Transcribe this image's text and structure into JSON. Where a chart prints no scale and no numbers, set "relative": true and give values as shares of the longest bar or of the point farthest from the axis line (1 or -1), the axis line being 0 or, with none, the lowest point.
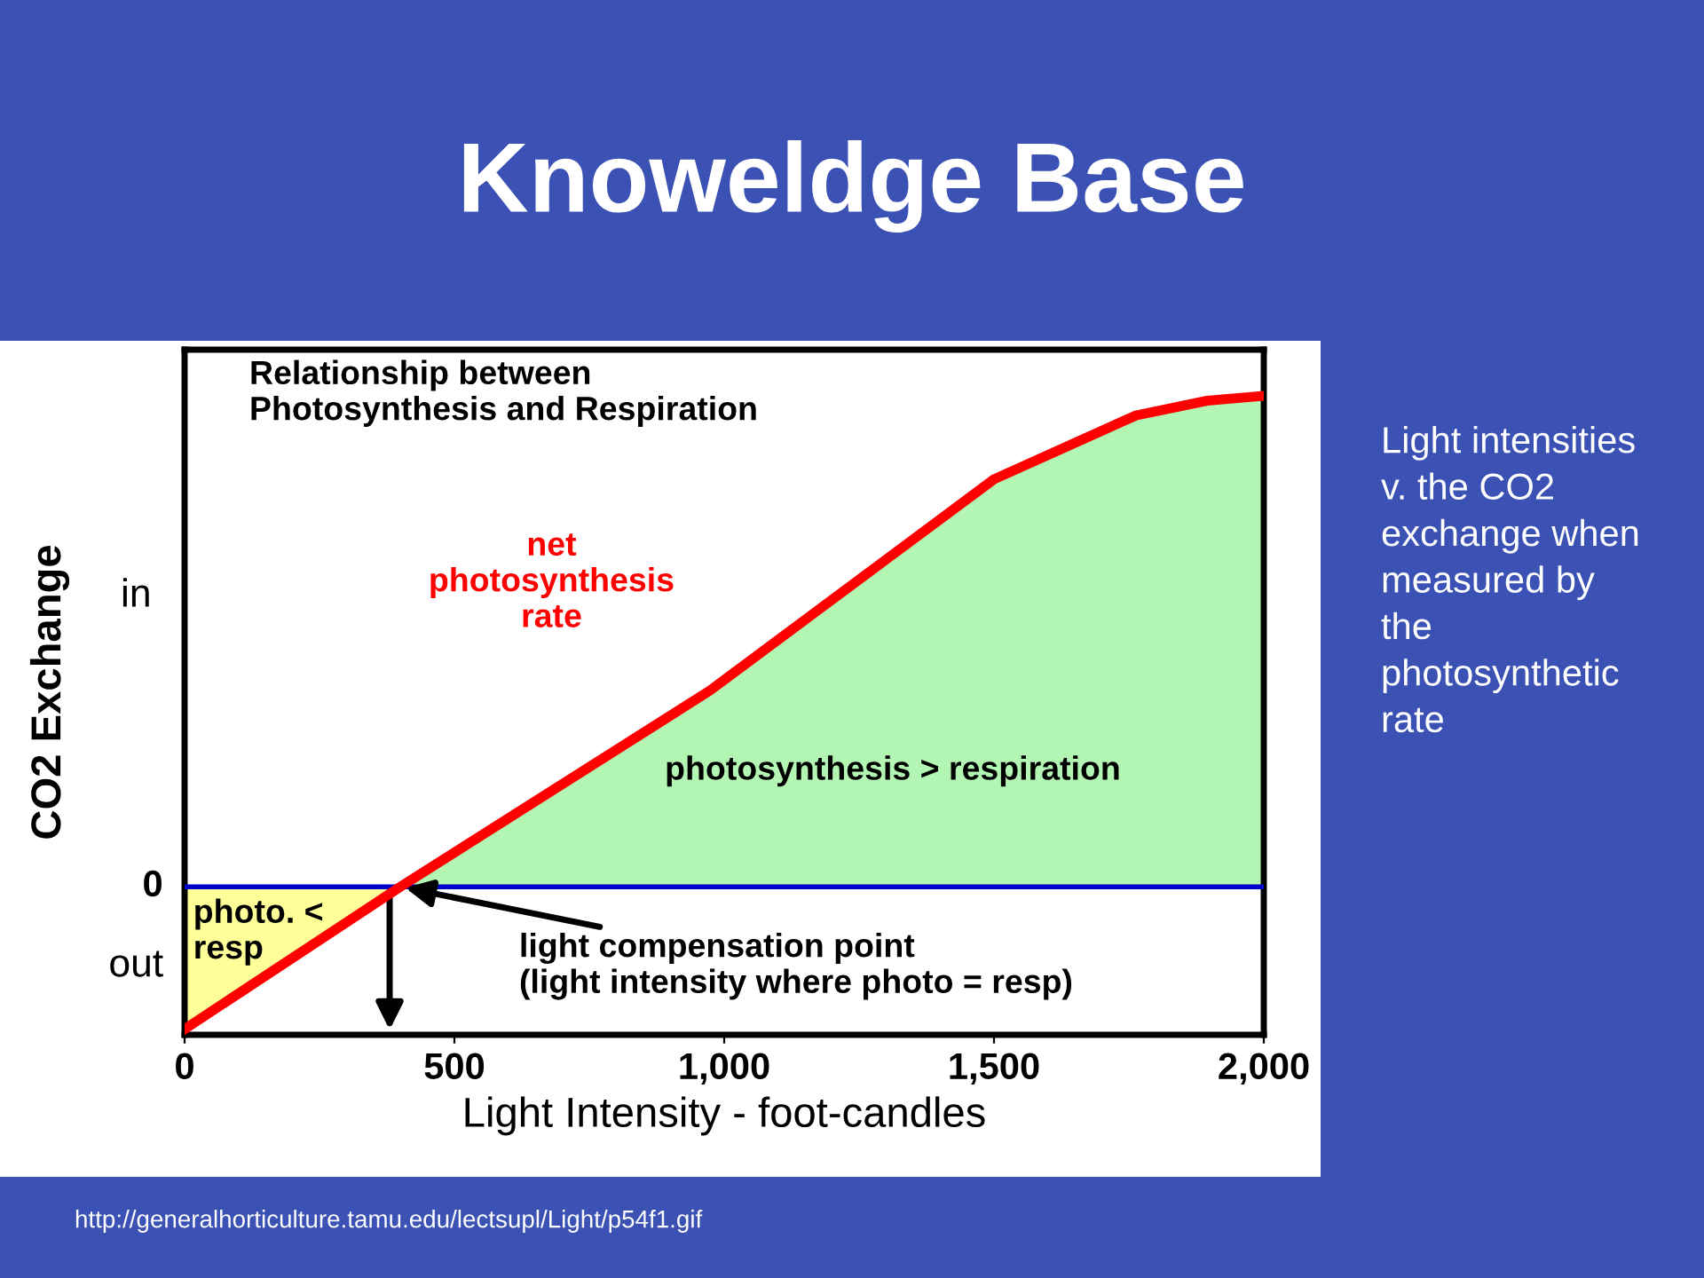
{
  "chart_data": {
    "type": "line",
    "title": "Knoweldge Base",
    "subtitle": "Relationship between\nPhotosynthesis and Respiration",
    "xlabel": "Light Intensity - foot-candles",
    "ylabel": "CO2 Exchange",
    "relative": true,
    "xlim": [
      0,
      2000
    ],
    "xticks": [
      0,
      500,
      {
        "value": 1000,
        "label": "1,000"
      },
      {
        "value": 1500,
        "label": "1,500"
      },
      {
        "value": 2000,
        "label": "2,000"
      }
    ],
    "series": [
      {
        "type": "area",
        "color": "#ffff99",
        "x": [
          0,
          400
        ],
        "values": [
          -0.29,
          0
        ]
      },
      {
        "type": "area",
        "color": "#b3f5b3",
        "x": [
          400,
          974,
          1500,
          1763,
          1895,
          2000
        ],
        "values": [
          0,
          0.4,
          0.83,
          0.96,
          0.99,
          1
        ]
      },
      {
        "type": "line",
        "color": "#ff0000",
        "x": [
          0,
          400,
          974,
          1500,
          1763,
          1895,
          2000
        ],
        "values": [
          -0.29,
          0,
          0.4,
          0.83,
          0.96,
          0.99,
          1
        ]
      }
    ],
    "ref_lines": [
      {
        "axis": "y",
        "value": 0,
        "color": "#0000cc"
      }
    ],
    "annotations": [
      "net\nphotosynthesis\nrate",
      "photosynthesis > respiration",
      "photo. <\nresp",
      {
        "text": "light compensation point\n(light intensity where photo = resp)",
        "x": 400,
        "y": 0
      },
      "in",
      "0",
      "out",
      "Light intensities\nv. the CO2\nexchange when\nmeasured by\nthe\nphotosynthetic\nrate",
      "http://generalhorticulture.tamu.edu/lectsupl/Light/p54f1.gif"
    ]
  }
}
